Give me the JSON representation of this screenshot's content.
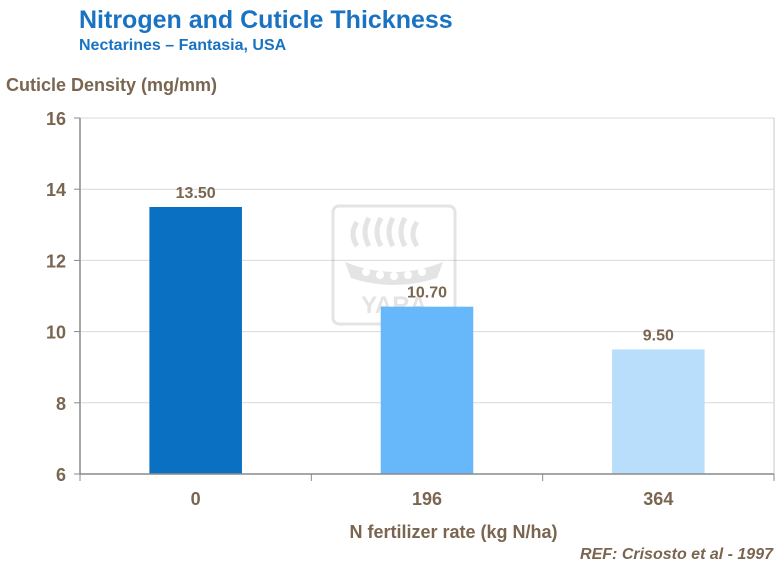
{
  "chart_data": {
    "type": "bar",
    "title": "Nitrogen and Cuticle Thickness",
    "subtitle": "Nectarines – Fantasia, USA",
    "ylabel": "Cuticle Density (mg/mm)",
    "xlabel": "N fertilizer rate (kg N/ha)",
    "categories": [
      "0",
      "196",
      "364"
    ],
    "values": [
      13.5,
      10.7,
      9.5
    ],
    "value_labels": [
      "13.50",
      "10.70",
      "9.50"
    ],
    "bar_colors": [
      "#0a70c2",
      "#66b8fa",
      "#b8defb"
    ],
    "ylim": [
      6,
      16
    ],
    "yticks": [
      6,
      8,
      10,
      12,
      14,
      16
    ],
    "grid": true,
    "watermark": "YARA",
    "reference": "REF: Crisosto et al - 1997"
  }
}
